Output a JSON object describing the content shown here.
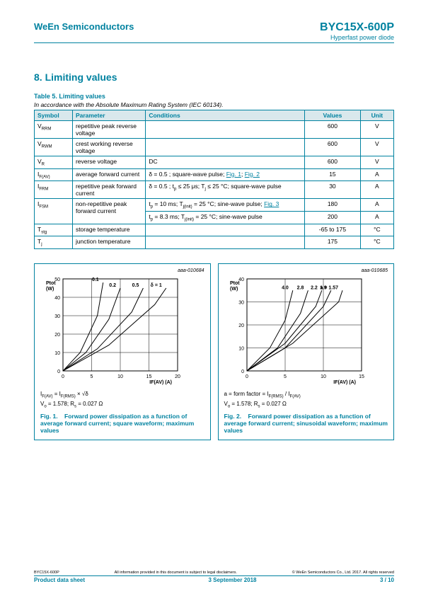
{
  "header": {
    "company": "WeEn Semiconductors",
    "part": "BYC15X-600P",
    "subtitle": "Hyperfast power diode"
  },
  "section": {
    "num": "8.",
    "title": "Limiting values"
  },
  "table": {
    "title": "Table 5. Limiting values",
    "caption": "In accordance with the Absolute Maximum Rating System (IEC 60134).",
    "headers": [
      "Symbol",
      "Parameter",
      "Conditions",
      "Values",
      "Unit"
    ],
    "rows": [
      {
        "sym": "V",
        "sub": "RRM",
        "param": "repetitive peak reverse voltage",
        "cond": "",
        "val": "600",
        "unit": "V"
      },
      {
        "sym": "V",
        "sub": "RWM",
        "param": "crest working reverse voltage",
        "cond": "",
        "val": "600",
        "unit": "V"
      },
      {
        "sym": "V",
        "sub": "R",
        "param": "reverse voltage",
        "cond": "DC",
        "val": "600",
        "unit": "V"
      },
      {
        "sym": "I",
        "sub": "F(AV)",
        "param": "average forward current",
        "cond": "δ = 0.5 ; square-wave pulse; ",
        "links": [
          "Fig. 1",
          "Fig. 2"
        ],
        "val": "15",
        "unit": "A"
      },
      {
        "sym": "I",
        "sub": "FRM",
        "param": "repetitive peak forward current",
        "cond": "δ = 0.5 ; tp ≤ 25 μs; Tj ≤ 25 °C; square-wave pulse",
        "val": "30",
        "unit": "A"
      },
      {
        "sym": "I",
        "sub": "FSM",
        "param": "non-repetitive peak forward current",
        "cond": "tp = 10 ms; Tj(init) = 25 °C; sine-wave pulse; ",
        "links": [
          "Fig. 3"
        ],
        "val": "180",
        "unit": "A",
        "extra": {
          "cond": "tp = 8.3 ms; Tj(init) = 25 °C; sine-wave pulse",
          "val": "200",
          "unit": "A"
        }
      },
      {
        "sym": "T",
        "sub": "stg",
        "param": "storage temperature",
        "cond": "",
        "val": "-65 to 175",
        "unit": "°C"
      },
      {
        "sym": "T",
        "sub": "j",
        "param": "junction temperature",
        "cond": "",
        "val": "175",
        "unit": "°C"
      }
    ],
    "colwidths": [
      "48",
      "92",
      "200",
      "70",
      "42"
    ]
  },
  "figures": [
    {
      "id": "aaa-010684",
      "eq1": "IF(AV) = IF(RMS) × √δ",
      "eq2": "Vo = 1.578; Rs = 0.027 Ω",
      "capnum": "Fig. 1.",
      "cap": "Forward power dissipation as a function of average forward current; square waveform; maximum values",
      "chart": {
        "xlim": [
          0,
          20
        ],
        "ylim": [
          0,
          50
        ],
        "ytick": 10,
        "xtick": 5,
        "ylabel": "Ptot (W)",
        "xlabel": "IF(AV) (A)",
        "series": [
          {
            "lbl": "0.1",
            "pts": [
              [
                0,
                0
              ],
              [
                3,
                10
              ],
              [
                6,
                30
              ],
              [
                7,
                48
              ]
            ]
          },
          {
            "lbl": "0.2",
            "pts": [
              [
                0,
                0
              ],
              [
                4,
                10
              ],
              [
                8,
                28
              ],
              [
                10,
                45
              ]
            ]
          },
          {
            "lbl": "0.5",
            "pts": [
              [
                0,
                0
              ],
              [
                6,
                12
              ],
              [
                12,
                32
              ],
              [
                14,
                45
              ]
            ]
          },
          {
            "lbl": "δ = 1",
            "pts": [
              [
                0,
                0
              ],
              [
                8,
                14
              ],
              [
                16,
                36
              ],
              [
                18,
                45
              ]
            ]
          }
        ]
      }
    },
    {
      "id": "aaa-010685",
      "eq1": "a = form factor = IF(RMS) / IF(AV)",
      "eq2": "Vo = 1.578; Rs = 0.027 Ω",
      "capnum": "Fig. 2.",
      "cap": "Forward power dissipation as a function of average forward current; sinusoidal waveform; maximum values",
      "chart": {
        "xlim": [
          0,
          15
        ],
        "ylim": [
          0,
          40
        ],
        "ytick": 10,
        "xtick": 5,
        "ylabel": "Ptot (W)",
        "xlabel": "IF(AV) (A)",
        "series": [
          {
            "lbl": "4.0",
            "pts": [
              [
                0,
                0
              ],
              [
                3,
                10
              ],
              [
                5,
                22
              ],
              [
                6,
                35
              ]
            ]
          },
          {
            "lbl": "2.8",
            "pts": [
              [
                0,
                0
              ],
              [
                4,
                10
              ],
              [
                7,
                25
              ],
              [
                8,
                35
              ]
            ]
          },
          {
            "lbl": "2.2",
            "pts": [
              [
                0,
                0
              ],
              [
                5,
                12
              ],
              [
                9,
                28
              ],
              [
                9.8,
                35
              ]
            ]
          },
          {
            "lbl": "1.9",
            "pts": [
              [
                0,
                0
              ],
              [
                5,
                10
              ],
              [
                10,
                28
              ],
              [
                11,
                35
              ]
            ]
          },
          {
            "lbl": "a = 1.57",
            "pts": [
              [
                0,
                0
              ],
              [
                6,
                12
              ],
              [
                12,
                30
              ],
              [
                12.5,
                35
              ]
            ]
          }
        ]
      }
    }
  ],
  "footer": {
    "left": "BYC15X-600P",
    "mid": "All information provided in this document is subject to legal disclaimers.",
    "right": "© WeEn Semiconductors Co., Ltd. 2017. All rights reserved",
    "bleft": "Product data sheet",
    "bmid": "3 September 2018",
    "bright": "3 / 10"
  },
  "colors": {
    "brand": "#0082a0",
    "grid": "#000"
  }
}
